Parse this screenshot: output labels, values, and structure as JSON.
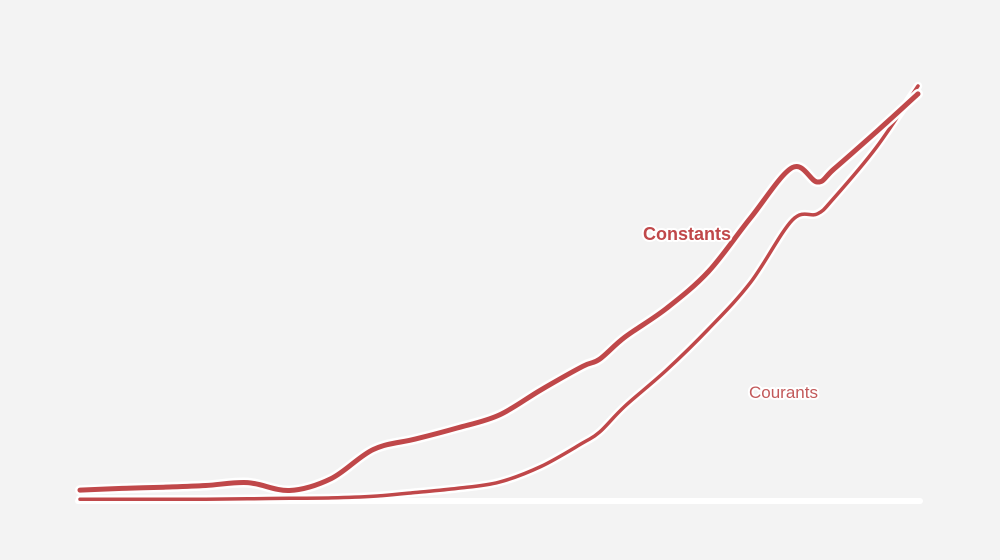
{
  "chart_data": {
    "type": "line",
    "title": "",
    "xlabel": "",
    "ylabel": "",
    "grid": false,
    "legend": "none",
    "x": [
      0,
      5,
      10,
      15,
      20,
      25,
      30,
      35,
      40,
      45,
      50,
      55,
      60,
      62,
      65,
      70,
      75,
      80,
      85,
      88,
      90,
      95,
      100
    ],
    "xlim": [
      0,
      100
    ],
    "ylim": [
      0,
      100
    ],
    "series": [
      {
        "name": "Constants",
        "color": "#c0484a",
        "emphasis": "bold",
        "values": [
          2.4,
          2.8,
          3.1,
          3.5,
          4.2,
          2.3,
          5.2,
          12.2,
          14.7,
          17.4,
          20.5,
          26.6,
          32.3,
          34.0,
          39.3,
          46.3,
          55.2,
          68.1,
          80.3,
          76.8,
          80.0,
          88.9,
          98.1
        ]
      },
      {
        "name": "Courants",
        "color": "#c0484a",
        "emphasis": "light",
        "values": [
          0.2,
          0.2,
          0.2,
          0.2,
          0.3,
          0.4,
          0.5,
          0.9,
          1.8,
          2.8,
          4.3,
          8.1,
          13.8,
          16.4,
          22.6,
          31.4,
          41.3,
          52.5,
          67.6,
          69.1,
          73.0,
          85.1,
          100
        ]
      }
    ]
  }
}
